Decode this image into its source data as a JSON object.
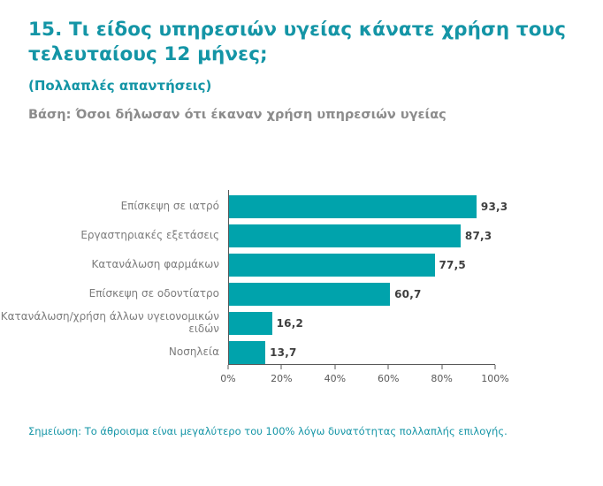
{
  "page": {
    "title": "15. Τι είδος υπηρεσιών υγείας κάνατε χρήση τους τελευταίους 12 μήνες;",
    "subtitle": "(Πολλαπλές απαντήσεις)",
    "base_note": "Βάση: Όσοι δήλωσαν ότι έκαναν χρήση υπηρεσιών υγείας",
    "footnote": "Σημείωση: Το άθροισμα είναι μεγαλύτερο του 100% λόγω δυνατότητας πολλαπλής επιλογής."
  },
  "colors": {
    "title_teal": "#1495A6",
    "bar_teal": "#00A3AC",
    "base_note_gray": "#8C8C8C",
    "category_label_gray": "#7C7C7C",
    "value_label_dark": "#3F3F3F",
    "axis_gray": "#595959",
    "background": "#FFFFFF"
  },
  "chart_data": {
    "type": "bar",
    "orientation": "horizontal",
    "categories": [
      "Επίσκεψη σε ιατρό",
      "Εργαστηριακές εξετάσεις",
      "Κατανάλωση φαρμάκων",
      "Επίσκεψη σε οδοντίατρο",
      "Κατανάλωση/χρήση άλλων υγειονομικών ειδών",
      "Νοσηλεία"
    ],
    "values": [
      93.3,
      87.3,
      77.5,
      60.7,
      16.2,
      13.7
    ],
    "value_labels": [
      "93,3",
      "87,3",
      "77,5",
      "60,7",
      "16,2",
      "13,7"
    ],
    "x_ticks": [
      "0%",
      "20%",
      "40%",
      "60%",
      "80%",
      "100%"
    ],
    "xlim": [
      0,
      100
    ],
    "grid": false,
    "legend": "none",
    "bar_color": "#00A3AC",
    "title": "15. Τι είδος υπηρεσιών υγείας κάνατε χρήση τους τελευταίους 12 μήνες;",
    "xlabel": "",
    "ylabel": ""
  }
}
